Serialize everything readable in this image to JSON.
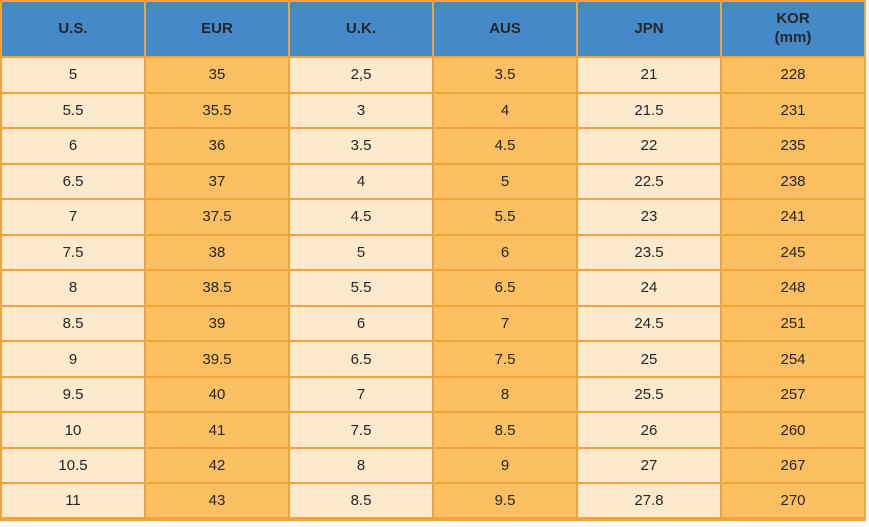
{
  "colors": {
    "header_background": "#4589c8",
    "light_column": "#fdeacd",
    "dark_column": "#fcbf62",
    "grid_border": "#f2a43c",
    "text": "#262626"
  },
  "chart_data": {
    "type": "table",
    "title": "",
    "columns": [
      {
        "label": "U.S.",
        "sublabel": ""
      },
      {
        "label": "EUR",
        "sublabel": ""
      },
      {
        "label": "U.K.",
        "sublabel": ""
      },
      {
        "label": "AUS",
        "sublabel": ""
      },
      {
        "label": "JPN",
        "sublabel": ""
      },
      {
        "label": "KOR",
        "sublabel": "(mm)"
      }
    ],
    "rows": [
      [
        "5",
        "35",
        "2,5",
        "3.5",
        "21",
        "228"
      ],
      [
        "5.5",
        "35.5",
        "3",
        "4",
        "21.5",
        "231"
      ],
      [
        "6",
        "36",
        "3.5",
        "4.5",
        "22",
        "235"
      ],
      [
        "6.5",
        "37",
        "4",
        "5",
        "22.5",
        "238"
      ],
      [
        "7",
        "37.5",
        "4.5",
        "5.5",
        "23",
        "241"
      ],
      [
        "7.5",
        "38",
        "5",
        "6",
        "23.5",
        "245"
      ],
      [
        "8",
        "38.5",
        "5.5",
        "6.5",
        "24",
        "248"
      ],
      [
        "8.5",
        "39",
        "6",
        "7",
        "24.5",
        "251"
      ],
      [
        "9",
        "39.5",
        "6.5",
        "7.5",
        "25",
        "254"
      ],
      [
        "9.5",
        "40",
        "7",
        "8",
        "25.5",
        "257"
      ],
      [
        "10",
        "41",
        "7.5",
        "8.5",
        "26",
        "260"
      ],
      [
        "10.5",
        "42",
        "8",
        "9",
        "27",
        "267"
      ],
      [
        "11",
        "43",
        "8.5",
        "9.5",
        "27.8",
        "270"
      ]
    ]
  }
}
